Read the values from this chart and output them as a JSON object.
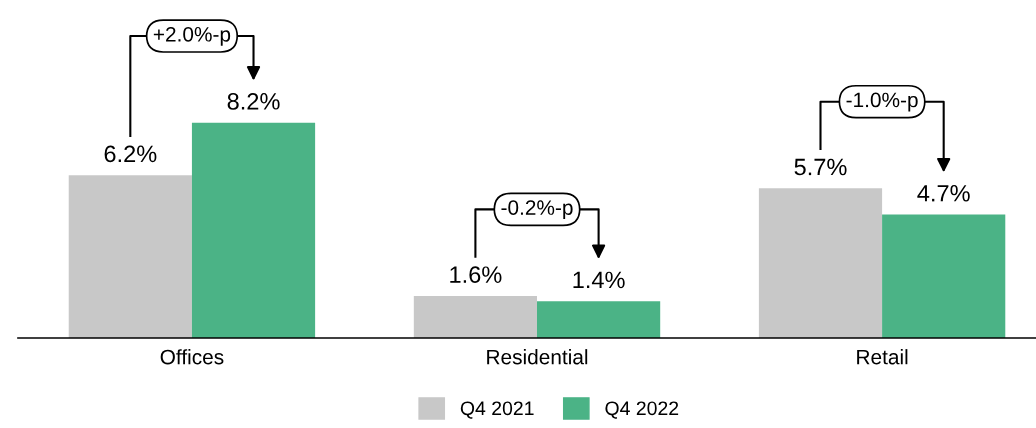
{
  "chart_data": {
    "type": "bar",
    "categories": [
      "Offices",
      "Residential",
      "Retail"
    ],
    "series": [
      {
        "name": "Q4 2021",
        "color": "#c8c8c8",
        "values": [
          6.2,
          1.6,
          5.7
        ],
        "value_labels": [
          "6.2%",
          "1.6%",
          "5.7%"
        ]
      },
      {
        "name": "Q4 2022",
        "color": "#4bb386",
        "values": [
          8.2,
          1.4,
          4.7
        ],
        "value_labels": [
          "8.2%",
          "1.4%",
          "4.7%"
        ]
      }
    ],
    "annotations": [
      "+2.0%-p",
      "-0.2%-p",
      "-1.0%-p"
    ],
    "legend": "bottom",
    "grid": false
  }
}
